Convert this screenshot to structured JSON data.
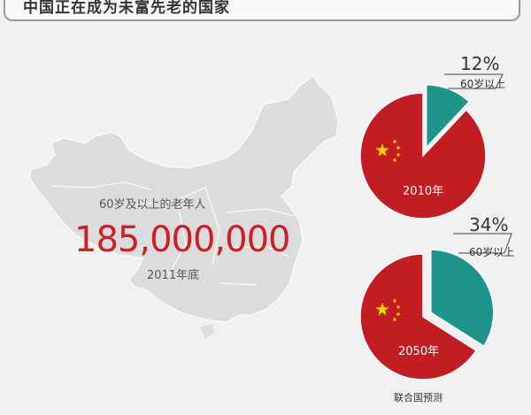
{
  "header": {
    "title": "中国正在成为未富先老的国家"
  },
  "stat": {
    "label": "60岁及以上的老年人",
    "value": "185,000,000",
    "date": "2011年底"
  },
  "colors": {
    "red": "#c31d24",
    "teal": "#1e958a",
    "flag_star": "#f4d400"
  },
  "chart_data": [
    {
      "type": "pie",
      "label": "2010年",
      "slices": [
        {
          "name": "60岁以上",
          "value": 12,
          "display": "12%",
          "color": "#1e958a"
        },
        {
          "name": "",
          "value": 88,
          "color": "#c31d24"
        }
      ]
    },
    {
      "type": "pie",
      "label": "2050年",
      "slices": [
        {
          "name": "60岁以上",
          "value": 34,
          "display": "34%",
          "color": "#1e958a"
        },
        {
          "name": "",
          "value": 66,
          "color": "#c31d24"
        }
      ]
    }
  ],
  "footnote": "联合国预测"
}
